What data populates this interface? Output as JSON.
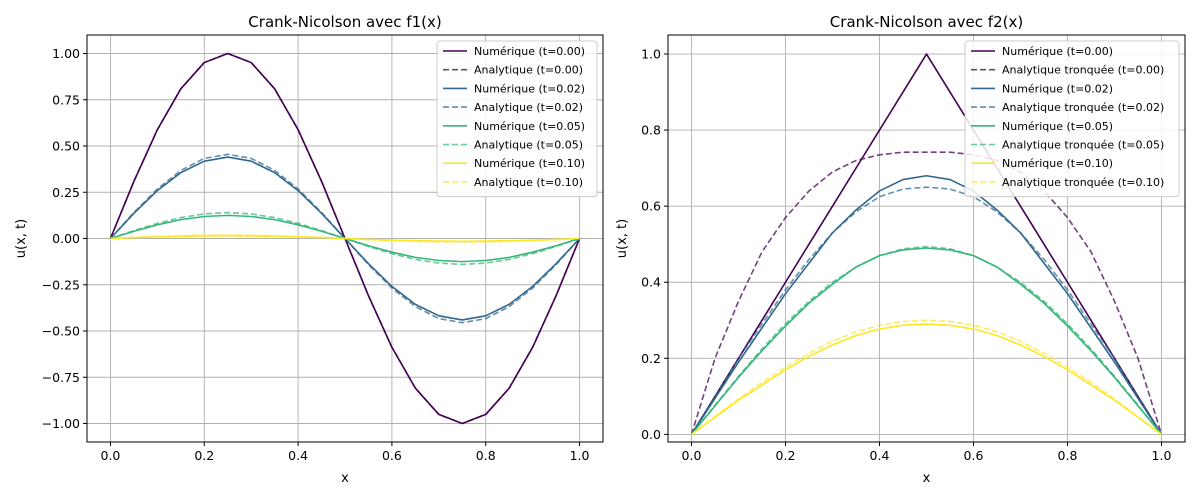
{
  "chart_data": [
    {
      "type": "line",
      "title": "Crank-Nicolson avec f1(x)",
      "xlabel": "x",
      "ylabel": "u(x, t)",
      "xlim": [
        -0.05,
        1.05
      ],
      "ylim": [
        -1.1,
        1.1
      ],
      "xticks": [
        0.0,
        0.2,
        0.4,
        0.6,
        0.8,
        1.0
      ],
      "xtick_labels": [
        "0.0",
        "0.2",
        "0.4",
        "0.6",
        "0.8",
        "1.0"
      ],
      "yticks": [
        -1.0,
        -0.75,
        -0.5,
        -0.25,
        0.0,
        0.25,
        0.5,
        0.75,
        1.0
      ],
      "ytick_labels": [
        "−1.00",
        "−0.75",
        "−0.50",
        "−0.25",
        "0.00",
        "0.25",
        "0.50",
        "0.75",
        "1.00"
      ],
      "grid": true,
      "legend_position": "top-right",
      "x": [
        0.0,
        0.05,
        0.1,
        0.15,
        0.2,
        0.25,
        0.3,
        0.35,
        0.4,
        0.45,
        0.5,
        0.55,
        0.6,
        0.65,
        0.7,
        0.75,
        0.8,
        0.85,
        0.9,
        0.95,
        1.0
      ],
      "series": [
        {
          "name": "Numérique (t=0.00)",
          "color": "#440154",
          "style": "solid",
          "values": [
            0.0,
            0.309,
            0.588,
            0.809,
            0.951,
            1.0,
            0.951,
            0.809,
            0.588,
            0.309,
            0.0,
            -0.309,
            -0.588,
            -0.809,
            -0.951,
            -1.0,
            -0.951,
            -0.809,
            -0.588,
            -0.309,
            0.0
          ]
        },
        {
          "name": "Analytique (t=0.00)",
          "color": "#440154",
          "style": "dashed",
          "values": [
            0.0,
            0.309,
            0.588,
            0.809,
            0.951,
            1.0,
            0.951,
            0.809,
            0.588,
            0.309,
            0.0,
            -0.309,
            -0.588,
            -0.809,
            -0.951,
            -1.0,
            -0.951,
            -0.809,
            -0.588,
            -0.309,
            0.0
          ]
        },
        {
          "name": "Numérique (t=0.02)",
          "color": "#31688e",
          "style": "solid",
          "values": [
            0.0,
            0.136,
            0.259,
            0.356,
            0.418,
            0.44,
            0.418,
            0.356,
            0.259,
            0.136,
            0.0,
            -0.136,
            -0.259,
            -0.356,
            -0.418,
            -0.44,
            -0.418,
            -0.356,
            -0.259,
            -0.136,
            0.0
          ]
        },
        {
          "name": "Analytique (t=0.02)",
          "color": "#31688e",
          "style": "dashed",
          "values": [
            0.0,
            0.141,
            0.268,
            0.368,
            0.433,
            0.455,
            0.433,
            0.368,
            0.268,
            0.141,
            0.0,
            -0.141,
            -0.268,
            -0.368,
            -0.433,
            -0.455,
            -0.433,
            -0.368,
            -0.268,
            -0.141,
            0.0
          ]
        },
        {
          "name": "Numérique (t=0.05)",
          "color": "#35b779",
          "style": "solid",
          "values": [
            0.0,
            0.039,
            0.074,
            0.102,
            0.119,
            0.125,
            0.119,
            0.102,
            0.074,
            0.039,
            0.0,
            -0.039,
            -0.074,
            -0.102,
            -0.119,
            -0.125,
            -0.119,
            -0.102,
            -0.074,
            -0.039,
            0.0
          ]
        },
        {
          "name": "Analytique (t=0.05)",
          "color": "#35b779",
          "style": "dashed",
          "values": [
            0.0,
            0.043,
            0.082,
            0.113,
            0.133,
            0.14,
            0.133,
            0.113,
            0.082,
            0.043,
            0.0,
            -0.043,
            -0.082,
            -0.113,
            -0.133,
            -0.14,
            -0.133,
            -0.113,
            -0.082,
            -0.043,
            0.0
          ]
        },
        {
          "name": "Numérique (t=0.10)",
          "color": "#fde725",
          "style": "solid",
          "values": [
            0.0,
            0.005,
            0.009,
            0.012,
            0.014,
            0.015,
            0.014,
            0.012,
            0.009,
            0.005,
            0.0,
            -0.005,
            -0.009,
            -0.012,
            -0.014,
            -0.015,
            -0.014,
            -0.012,
            -0.009,
            -0.005,
            0.0
          ]
        },
        {
          "name": "Analytique (t=0.10)",
          "color": "#fde725",
          "style": "dashed",
          "values": [
            0.0,
            0.006,
            0.011,
            0.015,
            0.018,
            0.019,
            0.018,
            0.015,
            0.011,
            0.006,
            0.0,
            -0.006,
            -0.011,
            -0.015,
            -0.018,
            -0.019,
            -0.018,
            -0.015,
            -0.011,
            -0.006,
            0.0
          ]
        }
      ]
    },
    {
      "type": "line",
      "title": "Crank-Nicolson avec f2(x)",
      "xlabel": "x",
      "ylabel": "u(x, t)",
      "xlim": [
        -0.05,
        1.05
      ],
      "ylim": [
        -0.02,
        1.05
      ],
      "xticks": [
        0.0,
        0.2,
        0.4,
        0.6,
        0.8,
        1.0
      ],
      "xtick_labels": [
        "0.0",
        "0.2",
        "0.4",
        "0.6",
        "0.8",
        "1.0"
      ],
      "yticks": [
        0.0,
        0.2,
        0.4,
        0.6,
        0.8,
        1.0
      ],
      "ytick_labels": [
        "0.0",
        "0.2",
        "0.4",
        "0.6",
        "0.8",
        "1.0"
      ],
      "grid": true,
      "legend_position": "top-right",
      "x": [
        0.0,
        0.05,
        0.1,
        0.15,
        0.2,
        0.25,
        0.3,
        0.35,
        0.4,
        0.45,
        0.5,
        0.55,
        0.6,
        0.65,
        0.7,
        0.75,
        0.8,
        0.85,
        0.9,
        0.95,
        1.0
      ],
      "series": [
        {
          "name": "Numérique (t=0.00)",
          "color": "#440154",
          "style": "solid",
          "values": [
            0.0,
            0.1,
            0.2,
            0.3,
            0.4,
            0.5,
            0.6,
            0.7,
            0.8,
            0.9,
            1.0,
            0.9,
            0.8,
            0.7,
            0.6,
            0.5,
            0.4,
            0.3,
            0.2,
            0.1,
            0.0
          ]
        },
        {
          "name": "Analytique tronquée (t=0.00)",
          "color": "#440154",
          "style": "dashed",
          "values": [
            0.0,
            0.2,
            0.35,
            0.48,
            0.57,
            0.64,
            0.69,
            0.72,
            0.735,
            0.742,
            0.742,
            0.742,
            0.735,
            0.72,
            0.69,
            0.64,
            0.57,
            0.48,
            0.35,
            0.2,
            0.0
          ]
        },
        {
          "name": "Numérique (t=0.02)",
          "color": "#31688e",
          "style": "solid",
          "values": [
            0.0,
            0.095,
            0.19,
            0.28,
            0.37,
            0.45,
            0.53,
            0.59,
            0.64,
            0.67,
            0.68,
            0.67,
            0.64,
            0.59,
            0.53,
            0.45,
            0.37,
            0.28,
            0.19,
            0.095,
            0.0
          ]
        },
        {
          "name": "Analytique tronquée (t=0.02)",
          "color": "#31688e",
          "style": "dashed",
          "values": [
            0.0,
            0.1,
            0.2,
            0.29,
            0.38,
            0.46,
            0.53,
            0.585,
            0.625,
            0.645,
            0.65,
            0.645,
            0.625,
            0.585,
            0.53,
            0.46,
            0.38,
            0.29,
            0.2,
            0.1,
            0.0
          ]
        },
        {
          "name": "Numérique (t=0.05)",
          "color": "#35b779",
          "style": "solid",
          "values": [
            0.0,
            0.075,
            0.15,
            0.22,
            0.285,
            0.345,
            0.395,
            0.44,
            0.47,
            0.485,
            0.49,
            0.485,
            0.47,
            0.44,
            0.395,
            0.345,
            0.285,
            0.22,
            0.15,
            0.075,
            0.0
          ]
        },
        {
          "name": "Analytique tronquée (t=0.05)",
          "color": "#35b779",
          "style": "dashed",
          "values": [
            0.0,
            0.077,
            0.153,
            0.225,
            0.291,
            0.35,
            0.4,
            0.44,
            0.47,
            0.488,
            0.494,
            0.488,
            0.47,
            0.44,
            0.4,
            0.35,
            0.291,
            0.225,
            0.153,
            0.077,
            0.0
          ]
        },
        {
          "name": "Numérique (t=0.10)",
          "color": "#fde725",
          "style": "solid",
          "values": [
            0.0,
            0.045,
            0.09,
            0.13,
            0.17,
            0.205,
            0.235,
            0.26,
            0.277,
            0.287,
            0.29,
            0.287,
            0.277,
            0.26,
            0.235,
            0.205,
            0.17,
            0.13,
            0.09,
            0.045,
            0.0
          ]
        },
        {
          "name": "Analytique tronquée (t=0.10)",
          "color": "#fde725",
          "style": "dashed",
          "values": [
            0.0,
            0.047,
            0.093,
            0.137,
            0.177,
            0.213,
            0.245,
            0.27,
            0.287,
            0.297,
            0.3,
            0.297,
            0.287,
            0.27,
            0.245,
            0.213,
            0.177,
            0.137,
            0.093,
            0.047,
            0.0
          ]
        }
      ]
    }
  ]
}
